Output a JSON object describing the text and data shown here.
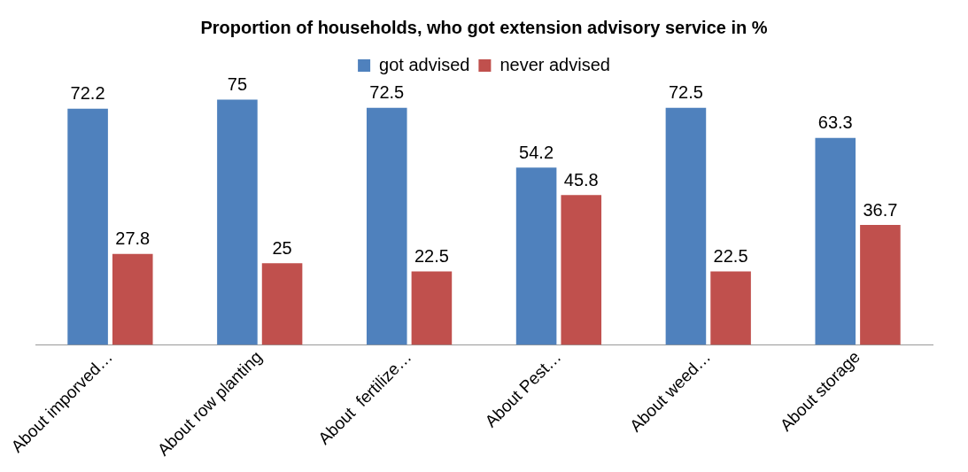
{
  "chart_data": {
    "type": "bar",
    "title": "Proportion of households, who got extension advisory service in %",
    "categories": [
      "About imporved…",
      "About row planting",
      "About  fertilize…",
      "About Pest…",
      "About weed…",
      "About storage"
    ],
    "series": [
      {
        "name": "got advised",
        "color": "#4f81bd",
        "values": [
          72.2,
          75,
          72.5,
          54.2,
          72.5,
          63.3
        ]
      },
      {
        "name": "never advised",
        "color": "#c0504d",
        "values": [
          27.8,
          25,
          22.5,
          45.8,
          22.5,
          36.7
        ]
      }
    ],
    "data_labels": true,
    "legend": "top",
    "grid": false
  }
}
